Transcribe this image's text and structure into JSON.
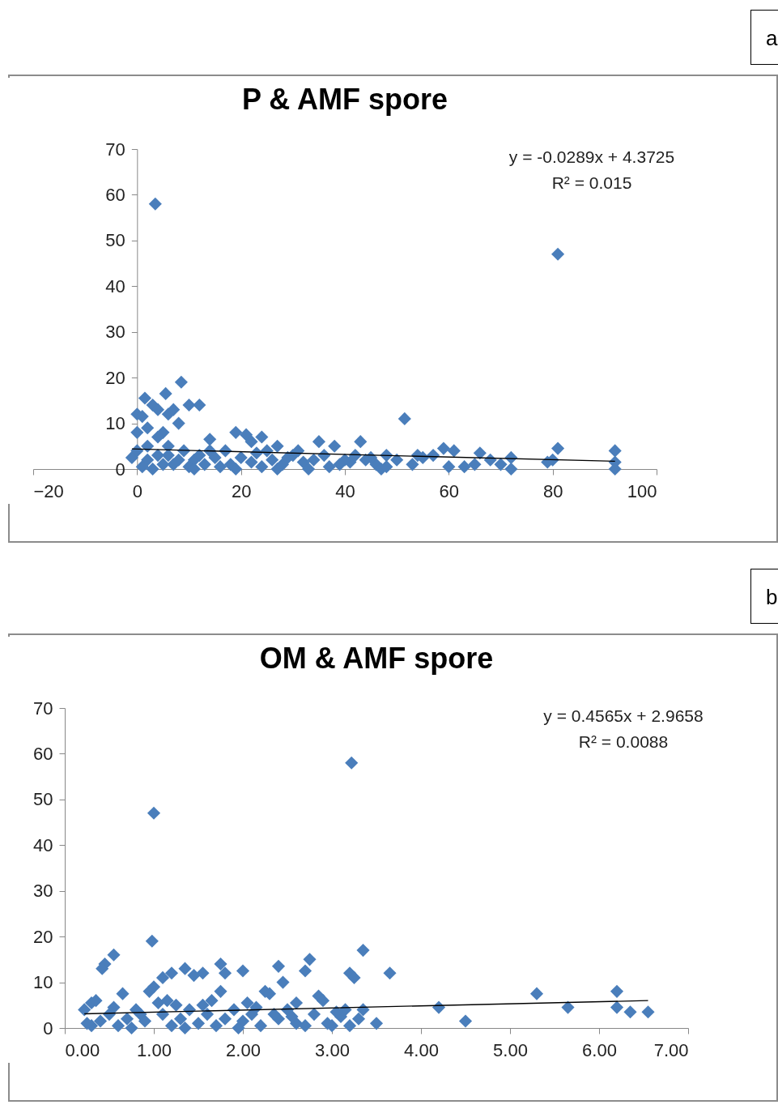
{
  "chart_data": [
    {
      "type": "scatter",
      "title": "P & AMF spore",
      "annotations": [
        "a",
        "y = -0.0289x + 4.3725",
        "R² = 0.015"
      ],
      "xlim": [
        -20,
        100
      ],
      "xticks": [
        -20,
        0,
        20,
        40,
        60,
        80,
        100
      ],
      "ylim": [
        0,
        70
      ],
      "yticks": [
        0,
        10,
        20,
        30,
        40,
        50,
        60,
        70
      ],
      "grid": false,
      "marker": "diamond",
      "series": [
        {
          "color": "#4a7ebb",
          "x": [
            3.5,
            81,
            8.5,
            1.5,
            5.5,
            0,
            1,
            3,
            4,
            6,
            7,
            10,
            12,
            2,
            5,
            8,
            0,
            14,
            19,
            21,
            22,
            24,
            51.5,
            35,
            43,
            38,
            27,
            59,
            61,
            66,
            72,
            81,
            92,
            92,
            92,
            80,
            79,
            63,
            60,
            68,
            55,
            53,
            50,
            48,
            46,
            45,
            41,
            40,
            37,
            34,
            32,
            30,
            28,
            26,
            24,
            22,
            20,
            18,
            16,
            15,
            13,
            11,
            10,
            9,
            8,
            7,
            6,
            5,
            4,
            3,
            2,
            1,
            -1,
            0,
            2,
            4,
            6,
            12,
            17,
            23,
            29,
            33,
            36,
            39,
            42,
            47,
            54,
            57,
            65,
            70,
            72,
            44,
            48,
            27,
            19,
            11,
            14,
            25,
            31
          ],
          "values": [
            58,
            47,
            19,
            15.5,
            16.5,
            12,
            11.5,
            14,
            13,
            12,
            13,
            14,
            14,
            9,
            8,
            10,
            8,
            6.5,
            8,
            7.5,
            6,
            7,
            11,
            6,
            6,
            5,
            5,
            4.5,
            4,
            3.5,
            2.5,
            4.5,
            4,
            1.5,
            0,
            2,
            1.5,
            0.5,
            0.5,
            2,
            2.5,
            1,
            2,
            3,
            1,
            2.5,
            1.5,
            2,
            0.5,
            2,
            1.5,
            3,
            1,
            2,
            0.5,
            1.5,
            2.5,
            1,
            0.5,
            2.5,
            1,
            2,
            0.5,
            4,
            2,
            1,
            5,
            1,
            3,
            0,
            2,
            0.5,
            2.5,
            4,
            5,
            7,
            3,
            3,
            4,
            3.5,
            2.5,
            0,
            3,
            1,
            3,
            0,
            3,
            3,
            1,
            1,
            0,
            2,
            0.5,
            0,
            0,
            0,
            4,
            4,
            4
          ]
        },
        {
          "type": "line",
          "marker": "none",
          "color": "#000000",
          "x": [
            -1,
            92
          ],
          "values": [
            4.4,
            1.7
          ]
        }
      ]
    },
    {
      "type": "scatter",
      "title": "OM & AMF spore",
      "annotations": [
        "b",
        "y = 0.4565x + 2.9658",
        "R² = 0.0088"
      ],
      "xlim": [
        0,
        7
      ],
      "xticks": [
        {
          "value": 0,
          "label": "0.00"
        },
        {
          "value": 1,
          "label": "1.00"
        },
        {
          "value": 2,
          "label": "2.00"
        },
        {
          "value": 3,
          "label": "3.00"
        },
        {
          "value": 4,
          "label": "4.00"
        },
        {
          "value": 5,
          "label": "5.00"
        },
        {
          "value": 6,
          "label": "6.00"
        },
        {
          "value": 7,
          "label": "7.00"
        }
      ],
      "ylim": [
        0,
        70
      ],
      "yticks": [
        0,
        10,
        20,
        30,
        40,
        50,
        60,
        70
      ],
      "grid": false,
      "marker": "diamond",
      "series": [
        {
          "color": "#4a7ebb",
          "x": [
            3.22,
            1.0,
            0.98,
            0.55,
            0.45,
            0.42,
            1.35,
            1.45,
            1.55,
            1.2,
            1.1,
            2.0,
            1.75,
            1.8,
            2.4,
            2.75,
            2.7,
            2.45,
            3.2,
            3.25,
            3.35,
            3.65,
            2.25,
            2.3,
            1.75,
            0.65,
            0.3,
            0.35,
            0.95,
            1.0,
            2.85,
            2.9,
            4.2,
            4.5,
            5.3,
            5.65,
            6.2,
            6.2,
            6.35,
            6.55,
            3.5,
            3.35,
            3.3,
            3.1,
            3.0,
            2.8,
            2.6,
            2.5,
            2.4,
            2.2,
            2.1,
            2.0,
            1.9,
            1.8,
            1.7,
            1.6,
            1.5,
            1.4,
            1.3,
            1.2,
            1.1,
            0.9,
            0.8,
            0.7,
            0.6,
            0.5,
            0.4,
            0.3,
            0.25,
            0.22,
            1.55,
            2.05,
            2.6,
            3.15,
            0.85,
            1.25,
            1.65,
            2.35,
            2.95,
            3.2,
            1.95,
            0.55,
            1.05,
            1.15,
            2.15,
            2.55,
            2.7,
            3.05,
            0.75,
            1.35
          ],
          "values": [
            58,
            47,
            19,
            16,
            14,
            13,
            13,
            11.5,
            12,
            12,
            11,
            12.5,
            14,
            12,
            13.5,
            15,
            12.5,
            10,
            12,
            11,
            17,
            12,
            8,
            7.5,
            8,
            7.5,
            5.5,
            6,
            8,
            9,
            7,
            6,
            4.5,
            1.5,
            7.5,
            4.5,
            8,
            4.5,
            3.5,
            3.5,
            1,
            4,
            2,
            2.5,
            0.5,
            3,
            1,
            4,
            2,
            0.5,
            3,
            1.5,
            4,
            2,
            0.5,
            3,
            1,
            4,
            2,
            0.5,
            3,
            1.5,
            4,
            2,
            0.5,
            3,
            1.5,
            0.5,
            1,
            4,
            5,
            5.5,
            5.5,
            4,
            3,
            5,
            6,
            3,
            1,
            0.5,
            0,
            4.5,
            5.5,
            6,
            4.5,
            2.5,
            0.5,
            3.5,
            0,
            0
          ]
        },
        {
          "type": "line",
          "marker": "none",
          "color": "#000000",
          "x": [
            0.22,
            6.55
          ],
          "values": [
            3.1,
            6.0
          ]
        }
      ]
    }
  ]
}
